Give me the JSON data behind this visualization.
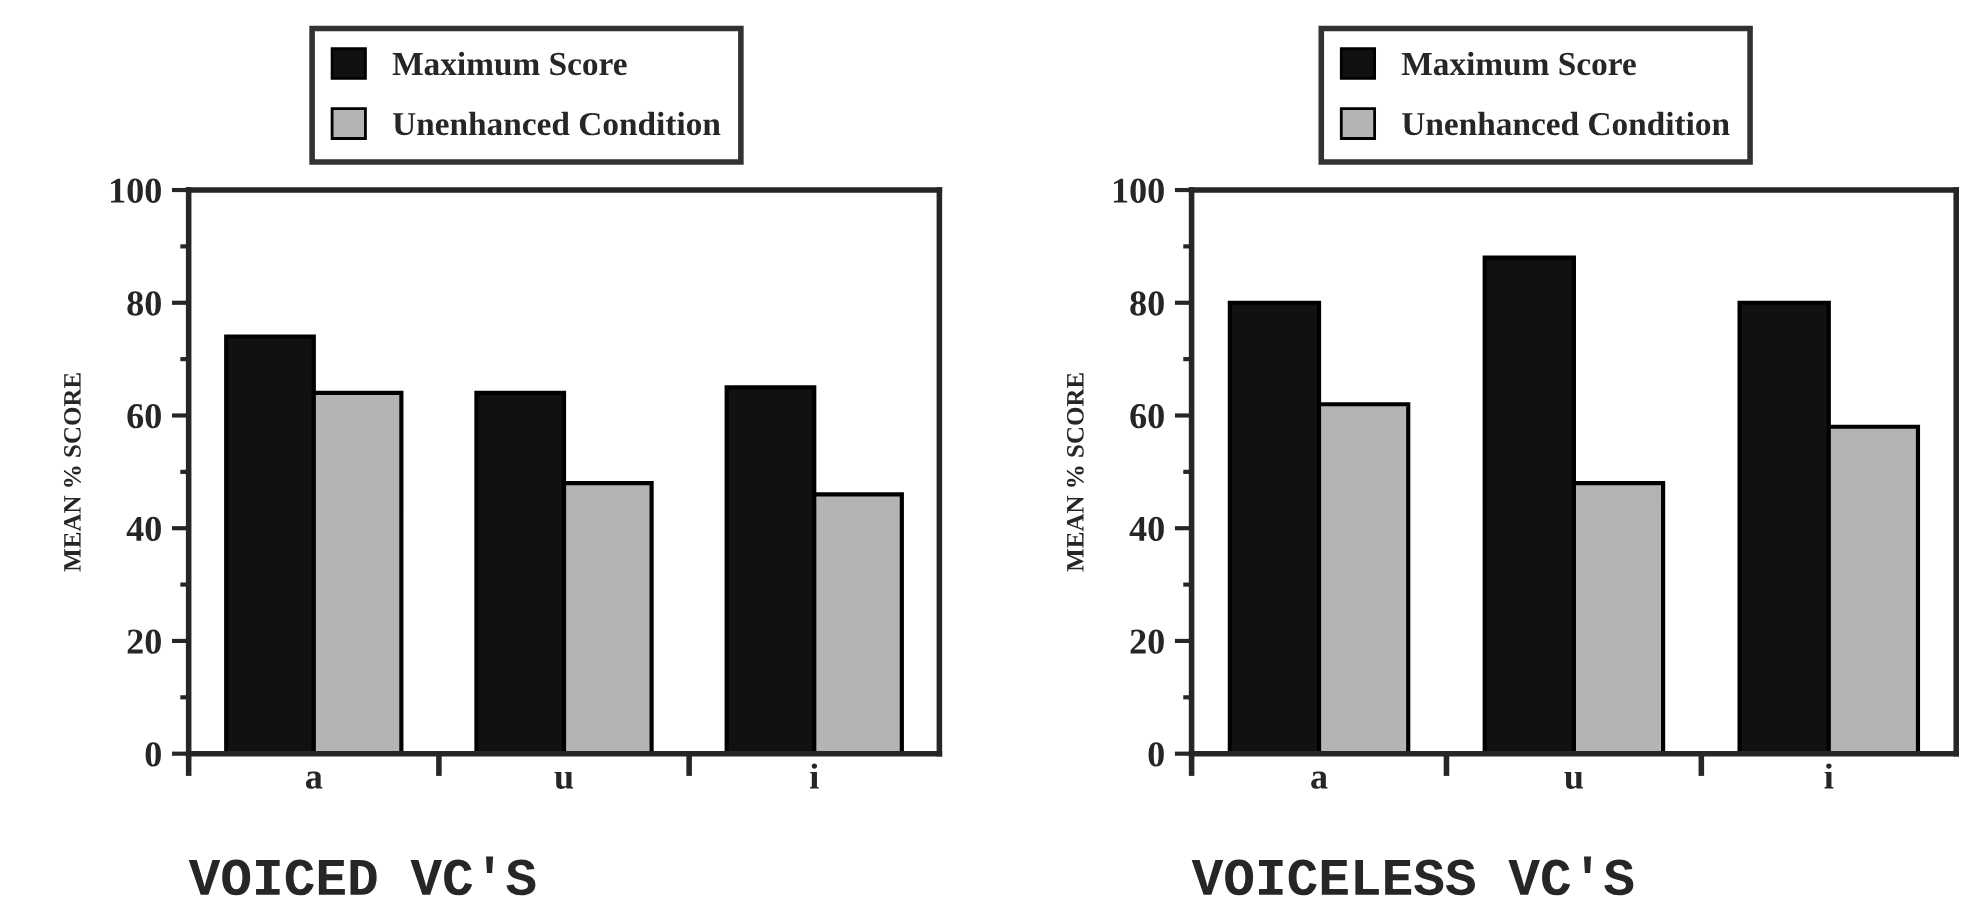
{
  "chart_data": [
    {
      "type": "bar",
      "title": "VOICED VC'S",
      "ylabel": "MEAN % SCORE",
      "categories": [
        "a",
        "u",
        "i"
      ],
      "series": [
        {
          "name": "Maximum Score",
          "color": "#111111",
          "values": [
            74,
            64,
            65
          ]
        },
        {
          "name": "Unenhanced Condition",
          "color": "#b4b4b4",
          "values": [
            64,
            48,
            46
          ]
        }
      ],
      "ylim": [
        0,
        100
      ],
      "yticks": [
        0,
        20,
        40,
        60,
        80,
        100
      ],
      "grid": false,
      "legend": "top"
    },
    {
      "type": "bar",
      "title": "VOICELESS VC'S",
      "ylabel": "MEAN % SCORE",
      "categories": [
        "a",
        "u",
        "i"
      ],
      "series": [
        {
          "name": "Maximum Score",
          "color": "#111111",
          "values": [
            80,
            88,
            80
          ]
        },
        {
          "name": "Unenhanced Condition",
          "color": "#b4b4b4",
          "values": [
            62,
            48,
            58
          ]
        }
      ],
      "ylim": [
        0,
        100
      ],
      "yticks": [
        0,
        20,
        40,
        60,
        80,
        100
      ],
      "grid": false,
      "legend": "top"
    }
  ]
}
